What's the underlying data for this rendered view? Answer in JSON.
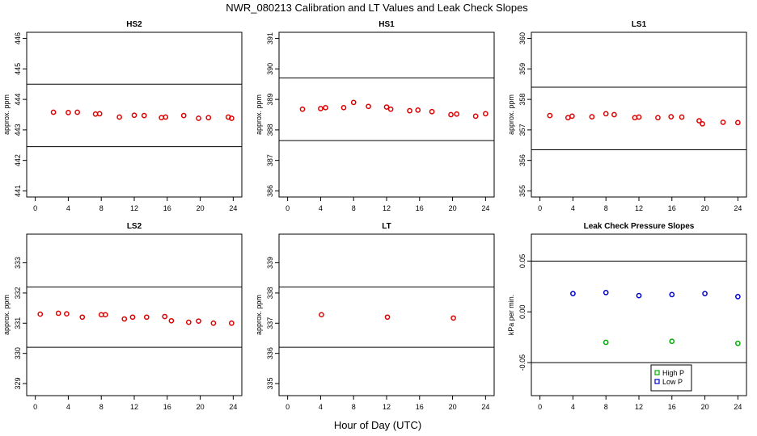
{
  "title": "NWR_080213  Calibration and LT Values and Leak Check Slopes",
  "xlabel": "Hour of Day (UTC)",
  "colors": {
    "points": "#dd0000",
    "high_p": "#00aa00",
    "low_p": "#0000cc"
  },
  "chart_data": [
    {
      "type": "scatter",
      "title": "HS2",
      "ylabel": "approx. ppm",
      "xlim": [
        0,
        24
      ],
      "xticks": [
        "0",
        "4",
        "8",
        "12",
        "16",
        "20",
        "24"
      ],
      "ylim": [
        440.8,
        446.2
      ],
      "yticks": [
        "441",
        "442",
        "443",
        "444",
        "445",
        "446"
      ],
      "hlines": [
        444.5,
        442.45
      ],
      "x": [
        2.2,
        4.0,
        5.1,
        7.3,
        7.8,
        10.2,
        12.0,
        13.2,
        15.3,
        15.8,
        18.0,
        19.8,
        21.0,
        23.4,
        23.8
      ],
      "y": [
        443.58,
        443.57,
        443.58,
        443.52,
        443.53,
        443.42,
        443.48,
        443.47,
        443.4,
        443.42,
        443.47,
        443.38,
        443.4,
        443.42,
        443.38
      ]
    },
    {
      "type": "scatter",
      "title": "HS1",
      "ylabel": "approx. ppm",
      "xlim": [
        0,
        24
      ],
      "xticks": [
        "0",
        "4",
        "8",
        "12",
        "16",
        "20",
        "24"
      ],
      "ylim": [
        385.8,
        391.2
      ],
      "yticks": [
        "386",
        "387",
        "388",
        "389",
        "390",
        "391"
      ],
      "hlines": [
        389.7,
        387.65
      ],
      "x": [
        1.8,
        4.0,
        4.6,
        6.8,
        8.0,
        9.8,
        12.0,
        12.5,
        14.8,
        15.8,
        17.5,
        19.8,
        20.5,
        22.8,
        24.0
      ],
      "y": [
        388.68,
        388.7,
        388.73,
        388.73,
        388.9,
        388.77,
        388.75,
        388.68,
        388.63,
        388.65,
        388.6,
        388.5,
        388.52,
        388.45,
        388.53
      ]
    },
    {
      "type": "scatter",
      "title": "LS1",
      "ylabel": "approx. ppm",
      "xlim": [
        0,
        24
      ],
      "xticks": [
        "0",
        "4",
        "8",
        "12",
        "16",
        "20",
        "24"
      ],
      "ylim": [
        354.8,
        360.2
      ],
      "yticks": [
        "355",
        "356",
        "357",
        "358",
        "359",
        "360"
      ],
      "hlines": [
        358.4,
        356.35
      ],
      "x": [
        1.2,
        3.4,
        3.9,
        6.3,
        8.0,
        9.0,
        11.5,
        12.0,
        14.3,
        15.9,
        17.2,
        19.3,
        19.7,
        22.2,
        24.0
      ],
      "y": [
        357.47,
        357.4,
        357.45,
        357.43,
        357.53,
        357.5,
        357.4,
        357.42,
        357.4,
        357.43,
        357.42,
        357.3,
        357.2,
        357.25,
        357.24
      ]
    },
    {
      "type": "scatter",
      "title": "LS2",
      "ylabel": "approx. ppm",
      "xlim": [
        0,
        24
      ],
      "xticks": [
        "0",
        "4",
        "8",
        "12",
        "16",
        "20",
        "24"
      ],
      "ylim": [
        328.6,
        333.95
      ],
      "yticks": [
        "329",
        "330",
        "331",
        "332",
        "333"
      ],
      "hlines": [
        332.2,
        330.2
      ],
      "x": [
        0.6,
        2.8,
        3.8,
        5.7,
        8.0,
        8.5,
        10.8,
        11.8,
        13.5,
        15.7,
        16.5,
        18.6,
        19.8,
        21.6,
        23.8
      ],
      "y": [
        331.3,
        331.33,
        331.31,
        331.2,
        331.28,
        331.28,
        331.14,
        331.2,
        331.2,
        331.22,
        331.08,
        331.03,
        331.07,
        331.0,
        331.0
      ]
    },
    {
      "type": "scatter",
      "title": "LT",
      "ylabel": "approx. ppm",
      "xlim": [
        0,
        24
      ],
      "xticks": [
        "0",
        "4",
        "8",
        "12",
        "16",
        "20",
        "24"
      ],
      "ylim": [
        334.6,
        339.95
      ],
      "yticks": [
        "335",
        "336",
        "337",
        "338",
        "339"
      ],
      "hlines": [
        338.2,
        336.2
      ],
      "x": [
        4.1,
        12.1,
        20.1
      ],
      "y": [
        337.28,
        337.2,
        337.17
      ]
    },
    {
      "type": "scatter",
      "title": "Leak Check Pressure Slopes",
      "ylabel": "kPa per min.",
      "xlim": [
        0,
        24
      ],
      "xticks": [
        "0",
        "4",
        "8",
        "12",
        "16",
        "20",
        "24"
      ],
      "ylim": [
        -0.0825,
        0.0765
      ],
      "yticks": [
        "-0.05",
        "0.00",
        "0.05"
      ],
      "hlines": [
        0.05,
        -0.05
      ],
      "series": [
        {
          "name": "High P",
          "x": [
            8.0,
            16.0,
            24.0
          ],
          "y": [
            -0.03,
            -0.029,
            -0.031
          ]
        },
        {
          "name": "Low P",
          "x": [
            4.0,
            8.0,
            12.0,
            16.0,
            20.0,
            24.0
          ],
          "y": [
            0.018,
            0.019,
            0.016,
            0.017,
            0.018,
            0.015
          ]
        }
      ],
      "legend_position": "bottom-right",
      "legend": [
        "High P",
        "Low P"
      ]
    }
  ]
}
